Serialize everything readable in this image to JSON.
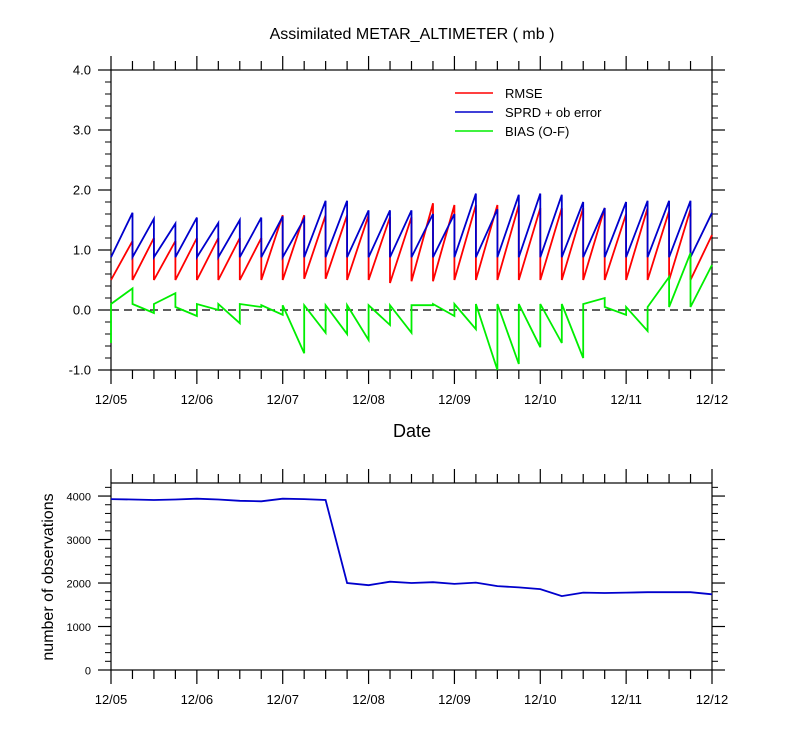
{
  "chart_data": [
    {
      "type": "line",
      "title": "Assimilated METAR_ALTIMETER ( mb )",
      "xlabel": "Date",
      "ylabel": "",
      "ylim": [
        -1.0,
        4.0
      ],
      "xlim": [
        0,
        7
      ],
      "yticks": [
        -1.0,
        0.0,
        1.0,
        2.0,
        3.0,
        4.0
      ],
      "ytick_labels": [
        "-1.0",
        "0.0",
        "1.0",
        "2.0",
        "3.0",
        "4.0"
      ],
      "xtick_labels": [
        "12/05",
        "12/06",
        "12/07",
        "12/08",
        "12/09",
        "12/10",
        "12/11",
        "12/12"
      ],
      "x_unit": "days since 12/05 00Z",
      "minor_ticks_per_day": 4,
      "reference_line": 0.0,
      "legend": {
        "location": "top-right"
      },
      "series": [
        {
          "name": "RMSE",
          "color": "#ff0000",
          "x": [
            0,
            0.25,
            0.25,
            0.5,
            0.5,
            0.75,
            0.75,
            1.0,
            1.0,
            1.25,
            1.25,
            1.5,
            1.5,
            1.75,
            1.75,
            2.0,
            2.0,
            2.25,
            2.25,
            2.5,
            2.5,
            2.75,
            2.75,
            3.0,
            3.0,
            3.25,
            3.25,
            3.5,
            3.5,
            3.75,
            3.75,
            4.0,
            4.0,
            4.25,
            4.25,
            4.5,
            4.5,
            4.75,
            4.75,
            5.0,
            5.0,
            5.25,
            5.25,
            5.5,
            5.5,
            5.75,
            5.75,
            6.0,
            6.0,
            6.25,
            6.25,
            6.5,
            6.5,
            6.75,
            6.75,
            7.0
          ],
          "y": [
            0.5,
            1.15,
            0.5,
            1.2,
            0.5,
            1.15,
            0.5,
            1.2,
            0.5,
            1.2,
            0.5,
            1.2,
            0.5,
            1.2,
            0.5,
            1.58,
            0.5,
            1.58,
            0.52,
            1.58,
            0.52,
            1.58,
            0.5,
            1.58,
            0.5,
            1.55,
            0.45,
            1.55,
            0.48,
            1.78,
            0.48,
            1.75,
            0.5,
            1.75,
            0.5,
            1.75,
            0.5,
            1.75,
            0.5,
            1.7,
            0.5,
            1.7,
            0.5,
            1.7,
            0.5,
            1.7,
            0.5,
            1.6,
            0.5,
            1.7,
            0.5,
            1.65,
            0.5,
            1.68,
            0.5,
            1.25
          ]
        },
        {
          "name": "SPRD + ob error",
          "color": "#0000cc",
          "x": [
            0,
            0.25,
            0.25,
            0.5,
            0.5,
            0.75,
            0.75,
            1.0,
            1.0,
            1.25,
            1.25,
            1.5,
            1.5,
            1.75,
            1.75,
            2.0,
            2.0,
            2.25,
            2.25,
            2.5,
            2.5,
            2.75,
            2.75,
            3.0,
            3.0,
            3.25,
            3.25,
            3.5,
            3.5,
            3.75,
            3.75,
            4.0,
            4.0,
            4.25,
            4.25,
            4.5,
            4.5,
            4.75,
            4.75,
            5.0,
            5.0,
            5.25,
            5.25,
            5.5,
            5.5,
            5.75,
            5.75,
            6.0,
            6.0,
            6.25,
            6.25,
            6.5,
            6.5,
            6.75,
            6.75,
            7.0
          ],
          "y": [
            0.88,
            1.62,
            0.88,
            1.52,
            0.88,
            1.44,
            0.88,
            1.54,
            0.88,
            1.45,
            0.88,
            1.5,
            0.88,
            1.54,
            0.88,
            1.56,
            0.88,
            1.52,
            0.88,
            1.82,
            0.88,
            1.82,
            0.88,
            1.66,
            0.88,
            1.66,
            0.88,
            1.66,
            0.88,
            1.6,
            0.88,
            1.6,
            0.88,
            1.94,
            0.88,
            1.68,
            0.88,
            1.92,
            0.88,
            1.94,
            0.88,
            1.92,
            0.88,
            1.8,
            0.88,
            1.7,
            0.88,
            1.8,
            0.88,
            1.82,
            0.88,
            1.82,
            0.88,
            1.82,
            0.88,
            1.62
          ]
        },
        {
          "name": "BIAS (O-F)",
          "color": "#00ee00",
          "x": [
            0,
            0,
            0.25,
            0.25,
            0.5,
            0.5,
            0.75,
            0.75,
            1.0,
            1.0,
            1.25,
            1.25,
            1.5,
            1.5,
            1.75,
            1.75,
            2.0,
            2.0,
            2.25,
            2.25,
            2.5,
            2.5,
            2.75,
            2.75,
            3.0,
            3.0,
            3.25,
            3.25,
            3.5,
            3.5,
            3.75,
            3.75,
            4.0,
            4.0,
            4.25,
            4.25,
            4.5,
            4.5,
            4.75,
            4.75,
            5.0,
            5.0,
            5.25,
            5.25,
            5.5,
            5.5,
            5.75,
            5.75,
            6.0,
            6.0,
            6.25,
            6.25,
            6.5,
            6.5,
            6.75,
            6.75,
            7.0
          ],
          "y": [
            -0.55,
            0.1,
            0.36,
            0.1,
            -0.05,
            0.1,
            0.28,
            0.05,
            -0.1,
            0.1,
            0.0,
            0.1,
            -0.22,
            0.1,
            0.05,
            0.08,
            -0.08,
            0.08,
            -0.72,
            0.08,
            -0.38,
            0.08,
            -0.4,
            0.08,
            -0.5,
            0.08,
            -0.25,
            0.08,
            -0.38,
            0.08,
            0.08,
            0.1,
            -0.1,
            0.1,
            -0.32,
            0.1,
            -1.0,
            0.1,
            -0.9,
            0.1,
            -0.62,
            0.1,
            -0.55,
            0.1,
            -0.8,
            0.1,
            0.2,
            0.05,
            -0.08,
            0.05,
            -0.35,
            0.05,
            0.55,
            0.05,
            0.95,
            0.05,
            0.75
          ]
        }
      ]
    },
    {
      "type": "line",
      "title": "",
      "xlabel": "",
      "ylabel": "number of observations",
      "ylim": [
        0,
        4300
      ],
      "xlim": [
        0,
        7
      ],
      "yticks": [
        0,
        1000,
        2000,
        3000,
        4000
      ],
      "ytick_labels": [
        "0",
        "1000",
        "2000",
        "3000",
        "4000"
      ],
      "xtick_labels": [
        "12/05",
        "12/06",
        "12/07",
        "12/08",
        "12/09",
        "12/10",
        "12/11",
        "12/12"
      ],
      "series": [
        {
          "name": "number of observations",
          "color": "#0000cc",
          "x": [
            0,
            0.25,
            0.5,
            0.75,
            1.0,
            1.25,
            1.5,
            1.75,
            2.0,
            2.25,
            2.5,
            2.75,
            3.0,
            3.25,
            3.5,
            3.75,
            4.0,
            4.25,
            4.5,
            4.75,
            5.0,
            5.25,
            5.5,
            5.75,
            6.0,
            6.25,
            6.5,
            6.75,
            7.0
          ],
          "y": [
            3930,
            3920,
            3910,
            3920,
            3940,
            3920,
            3890,
            3880,
            3940,
            3930,
            3910,
            2000,
            1950,
            2030,
            2000,
            2020,
            1980,
            2010,
            1930,
            1900,
            1860,
            1700,
            1780,
            1770,
            1780,
            1790,
            1790,
            1790,
            1740
          ]
        }
      ]
    }
  ]
}
